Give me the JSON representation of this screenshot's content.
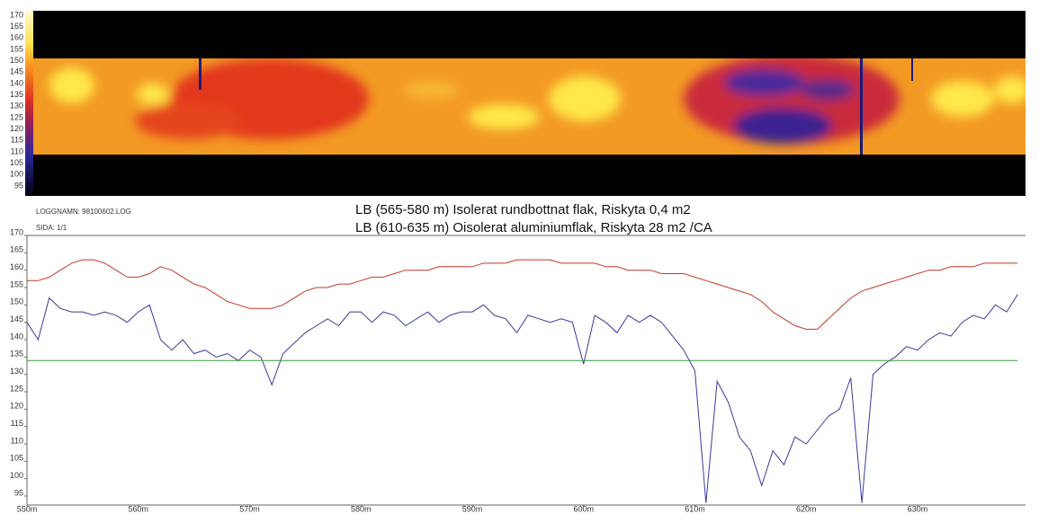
{
  "header": {
    "logname": "LOGGNAMN: 98100602.LOG",
    "page": "SIDA: 1/1",
    "notes": [
      "LB (565-580 m)  Isolerat rundbottnat flak, Riskyta 0,4 m2",
      "LB (610-635 m) Oisolerat aluminiumflak, Riskyta 28 m2 /CA"
    ]
  },
  "heatmap": {
    "colorbar_ticks": [
      170,
      165,
      160,
      155,
      150,
      145,
      140,
      135,
      130,
      125,
      120,
      115,
      110,
      105,
      100,
      95
    ]
  },
  "chart_data": {
    "type": "line",
    "x": [
      550,
      551,
      552,
      553,
      554,
      555,
      556,
      557,
      558,
      559,
      560,
      561,
      562,
      563,
      564,
      565,
      566,
      567,
      568,
      569,
      570,
      571,
      572,
      573,
      574,
      575,
      576,
      577,
      578,
      579,
      580,
      581,
      582,
      583,
      584,
      585,
      586,
      587,
      588,
      589,
      590,
      591,
      592,
      593,
      594,
      595,
      596,
      597,
      598,
      599,
      600,
      601,
      602,
      603,
      604,
      605,
      606,
      607,
      608,
      609,
      610,
      611,
      612,
      613,
      614,
      615,
      616,
      617,
      618,
      619,
      620,
      621,
      622,
      623,
      624,
      625,
      626,
      627,
      628,
      629,
      630,
      631,
      632,
      633,
      634,
      635,
      636,
      637,
      638,
      639
    ],
    "series": [
      {
        "color": "#c0392b",
        "values": [
          157,
          157,
          158,
          160,
          162,
          163,
          163,
          162,
          160,
          158,
          158,
          159,
          161,
          160,
          158,
          156,
          155,
          153,
          151,
          150,
          149,
          149,
          149,
          150,
          152,
          154,
          155,
          155,
          156,
          156,
          157,
          158,
          158,
          159,
          160,
          160,
          160,
          161,
          161,
          161,
          161,
          162,
          162,
          162,
          163,
          163,
          163,
          163,
          162,
          162,
          162,
          162,
          161,
          161,
          160,
          160,
          160,
          159,
          159,
          159,
          158,
          157,
          156,
          155,
          154,
          153,
          151,
          148,
          146,
          144,
          143,
          143,
          146,
          149,
          152,
          154,
          155,
          156,
          157,
          158,
          159,
          160,
          160,
          161,
          161,
          161,
          162,
          162,
          162,
          162
        ]
      },
      {
        "color": "#3a3a9e",
        "values": [
          145,
          140,
          152,
          149,
          148,
          148,
          147,
          148,
          147,
          145,
          148,
          150,
          140,
          137,
          140,
          136,
          137,
          135,
          136,
          134,
          137,
          135,
          127,
          136,
          139,
          142,
          144,
          146,
          144,
          148,
          148,
          145,
          148,
          147,
          144,
          146,
          148,
          145,
          147,
          148,
          148,
          150,
          147,
          146,
          142,
          147,
          146,
          145,
          146,
          145,
          133,
          147,
          145,
          142,
          147,
          145,
          147,
          145,
          141,
          137,
          131,
          93,
          128,
          122,
          112,
          108,
          98,
          108,
          104,
          112,
          110,
          114,
          118,
          120,
          129,
          93,
          130,
          133,
          135,
          138,
          137,
          140,
          142,
          141,
          145,
          147,
          146,
          150,
          148,
          153
        ]
      },
      {
        "color": "#3a9a3a",
        "values": [
          134,
          134,
          134,
          134,
          134,
          134,
          134,
          134,
          134,
          134,
          134,
          134,
          134,
          134,
          134,
          134,
          134,
          134,
          134,
          134,
          134,
          134,
          134,
          134,
          134,
          134,
          134,
          134,
          134,
          134,
          134,
          134,
          134,
          134,
          134,
          134,
          134,
          134,
          134,
          134,
          134,
          134,
          134,
          134,
          134,
          134,
          134,
          134,
          134,
          134,
          134,
          134,
          134,
          134,
          134,
          134,
          134,
          134,
          134,
          134,
          134,
          134,
          134,
          134,
          134,
          134,
          134,
          134,
          134,
          134,
          134,
          134,
          134,
          134,
          134,
          134,
          134,
          134,
          134,
          134,
          134,
          134,
          134,
          134,
          134,
          134,
          134,
          134,
          134,
          134
        ]
      }
    ],
    "xlim": [
      550,
      639.7
    ],
    "xticks": [
      {
        "value": 550,
        "label": "550m"
      },
      {
        "value": 560,
        "label": "560m"
      },
      {
        "value": 570,
        "label": "570m"
      },
      {
        "value": 580,
        "label": "580m"
      },
      {
        "value": 590,
        "label": "590m"
      },
      {
        "value": 600,
        "label": "600m"
      },
      {
        "value": 610,
        "label": "610m"
      },
      {
        "value": 620,
        "label": "620m"
      },
      {
        "value": 630,
        "label": "630m"
      }
    ],
    "ylim": [
      95,
      170
    ],
    "yticks": [
      170,
      165,
      160,
      155,
      150,
      145,
      140,
      135,
      130,
      125,
      120,
      115,
      110,
      105,
      100,
      95
    ]
  }
}
